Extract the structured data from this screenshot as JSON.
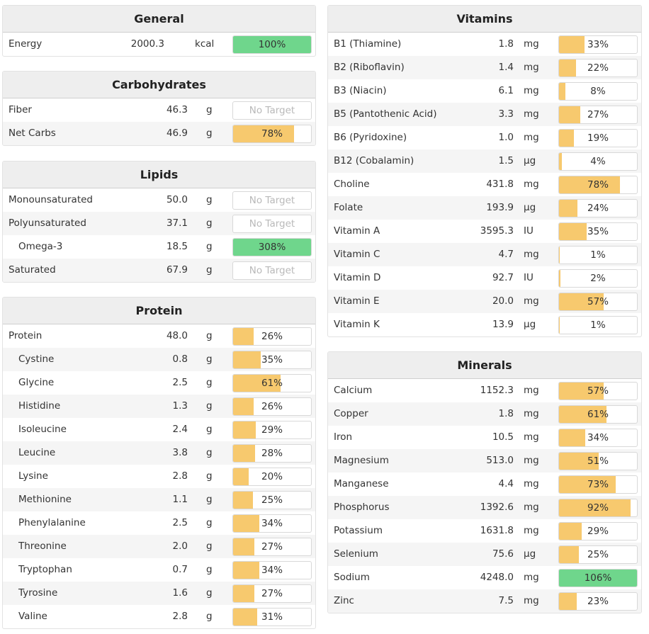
{
  "colors": {
    "target_fill": "#f7c96e",
    "met_fill": "#6fd68c"
  },
  "general": {
    "title": "General",
    "rows": [
      {
        "name": "Energy",
        "amount": "2000.3",
        "unit": "kcal",
        "percent": "100%",
        "fraction": 1.0,
        "met": true
      }
    ]
  },
  "carbohydrates": {
    "title": "Carbohydrates",
    "rows": [
      {
        "name": "Fiber",
        "amount": "46.3",
        "unit": "g",
        "percent": "No Target",
        "fraction": 0,
        "notarget": true
      },
      {
        "name": "Net Carbs",
        "amount": "46.9",
        "unit": "g",
        "percent": "78%",
        "fraction": 0.78
      }
    ]
  },
  "lipids": {
    "title": "Lipids",
    "rows": [
      {
        "name": "Monounsaturated",
        "amount": "50.0",
        "unit": "g",
        "percent": "No Target",
        "fraction": 0,
        "notarget": true
      },
      {
        "name": "Polyunsaturated",
        "amount": "37.1",
        "unit": "g",
        "percent": "No Target",
        "fraction": 0,
        "notarget": true
      },
      {
        "name": "Omega-3",
        "amount": "18.5",
        "unit": "g",
        "percent": "308%",
        "fraction": 1.0,
        "met": true,
        "indent": true
      },
      {
        "name": "Saturated",
        "amount": "67.9",
        "unit": "g",
        "percent": "No Target",
        "fraction": 0,
        "notarget": true
      }
    ]
  },
  "protein": {
    "title": "Protein",
    "rows": [
      {
        "name": "Protein",
        "amount": "48.0",
        "unit": "g",
        "percent": "26%",
        "fraction": 0.26
      },
      {
        "name": "Cystine",
        "amount": "0.8",
        "unit": "g",
        "percent": "35%",
        "fraction": 0.35,
        "indent": true
      },
      {
        "name": "Glycine",
        "amount": "2.5",
        "unit": "g",
        "percent": "61%",
        "fraction": 0.61,
        "indent": true
      },
      {
        "name": "Histidine",
        "amount": "1.3",
        "unit": "g",
        "percent": "26%",
        "fraction": 0.26,
        "indent": true
      },
      {
        "name": "Isoleucine",
        "amount": "2.4",
        "unit": "g",
        "percent": "29%",
        "fraction": 0.29,
        "indent": true
      },
      {
        "name": "Leucine",
        "amount": "3.8",
        "unit": "g",
        "percent": "28%",
        "fraction": 0.28,
        "indent": true
      },
      {
        "name": "Lysine",
        "amount": "2.8",
        "unit": "g",
        "percent": "20%",
        "fraction": 0.2,
        "indent": true
      },
      {
        "name": "Methionine",
        "amount": "1.1",
        "unit": "g",
        "percent": "25%",
        "fraction": 0.25,
        "indent": true
      },
      {
        "name": "Phenylalanine",
        "amount": "2.5",
        "unit": "g",
        "percent": "34%",
        "fraction": 0.34,
        "indent": true
      },
      {
        "name": "Threonine",
        "amount": "2.0",
        "unit": "g",
        "percent": "27%",
        "fraction": 0.27,
        "indent": true
      },
      {
        "name": "Tryptophan",
        "amount": "0.7",
        "unit": "g",
        "percent": "34%",
        "fraction": 0.34,
        "indent": true
      },
      {
        "name": "Tyrosine",
        "amount": "1.6",
        "unit": "g",
        "percent": "27%",
        "fraction": 0.27,
        "indent": true
      },
      {
        "name": "Valine",
        "amount": "2.8",
        "unit": "g",
        "percent": "31%",
        "fraction": 0.31,
        "indent": true
      }
    ]
  },
  "vitamins": {
    "title": "Vitamins",
    "rows": [
      {
        "name": "B1 (Thiamine)",
        "amount": "1.8",
        "unit": "mg",
        "percent": "33%",
        "fraction": 0.33
      },
      {
        "name": "B2 (Riboflavin)",
        "amount": "1.4",
        "unit": "mg",
        "percent": "22%",
        "fraction": 0.22
      },
      {
        "name": "B3 (Niacin)",
        "amount": "6.1",
        "unit": "mg",
        "percent": "8%",
        "fraction": 0.08
      },
      {
        "name": "B5 (Pantothenic Acid)",
        "amount": "3.3",
        "unit": "mg",
        "percent": "27%",
        "fraction": 0.27
      },
      {
        "name": "B6 (Pyridoxine)",
        "amount": "1.0",
        "unit": "mg",
        "percent": "19%",
        "fraction": 0.19
      },
      {
        "name": "B12 (Cobalamin)",
        "amount": "1.5",
        "unit": "µg",
        "percent": "4%",
        "fraction": 0.04
      },
      {
        "name": "Choline",
        "amount": "431.8",
        "unit": "mg",
        "percent": "78%",
        "fraction": 0.78
      },
      {
        "name": "Folate",
        "amount": "193.9",
        "unit": "µg",
        "percent": "24%",
        "fraction": 0.24
      },
      {
        "name": "Vitamin A",
        "amount": "3595.3",
        "unit": "IU",
        "percent": "35%",
        "fraction": 0.35
      },
      {
        "name": "Vitamin C",
        "amount": "4.7",
        "unit": "mg",
        "percent": "1%",
        "fraction": 0.01
      },
      {
        "name": "Vitamin D",
        "amount": "92.7",
        "unit": "IU",
        "percent": "2%",
        "fraction": 0.02
      },
      {
        "name": "Vitamin E",
        "amount": "20.0",
        "unit": "mg",
        "percent": "57%",
        "fraction": 0.57
      },
      {
        "name": "Vitamin K",
        "amount": "13.9",
        "unit": "µg",
        "percent": "1%",
        "fraction": 0.01
      }
    ]
  },
  "minerals": {
    "title": "Minerals",
    "rows": [
      {
        "name": "Calcium",
        "amount": "1152.3",
        "unit": "mg",
        "percent": "57%",
        "fraction": 0.57
      },
      {
        "name": "Copper",
        "amount": "1.8",
        "unit": "mg",
        "percent": "61%",
        "fraction": 0.61
      },
      {
        "name": "Iron",
        "amount": "10.5",
        "unit": "mg",
        "percent": "34%",
        "fraction": 0.34
      },
      {
        "name": "Magnesium",
        "amount": "513.0",
        "unit": "mg",
        "percent": "51%",
        "fraction": 0.51
      },
      {
        "name": "Manganese",
        "amount": "4.4",
        "unit": "mg",
        "percent": "73%",
        "fraction": 0.73
      },
      {
        "name": "Phosphorus",
        "amount": "1392.6",
        "unit": "mg",
        "percent": "92%",
        "fraction": 0.92
      },
      {
        "name": "Potassium",
        "amount": "1631.8",
        "unit": "mg",
        "percent": "29%",
        "fraction": 0.29
      },
      {
        "name": "Selenium",
        "amount": "75.6",
        "unit": "µg",
        "percent": "25%",
        "fraction": 0.25
      },
      {
        "name": "Sodium",
        "amount": "4248.0",
        "unit": "mg",
        "percent": "106%",
        "fraction": 1.0,
        "met": true
      },
      {
        "name": "Zinc",
        "amount": "7.5",
        "unit": "mg",
        "percent": "23%",
        "fraction": 0.23
      }
    ]
  }
}
